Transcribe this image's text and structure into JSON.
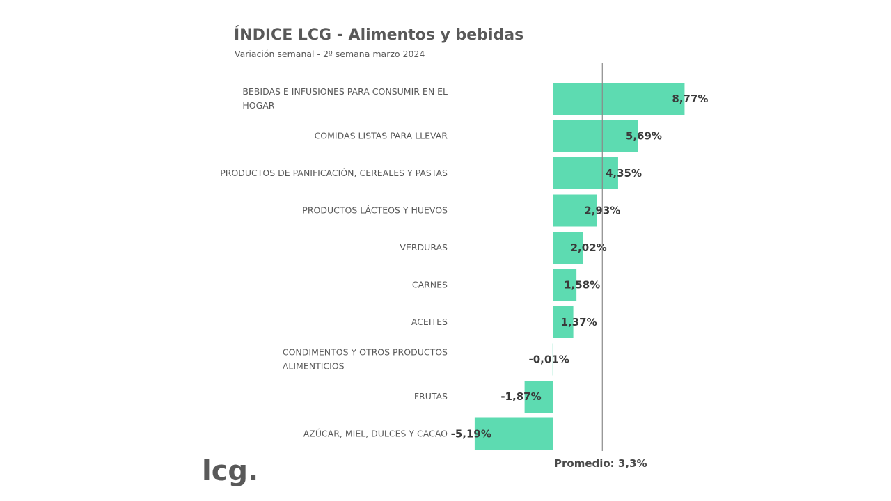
{
  "colors": {
    "bar": "#5ddbb1",
    "text": "#595959",
    "value_text": "#3a3a3a",
    "average_line": "#8a8a8a"
  },
  "brand": {
    "logo": "lcg."
  },
  "chart_data": {
    "type": "bar",
    "orientation": "horizontal",
    "title": "ÍNDICE LCG - Alimentos y bebidas",
    "subtitle": "Variación semanal - 2º semana marzo 2024",
    "categories": [
      [
        "BEBIDAS E INFUSIONES PARA CONSUMIR EN EL",
        "HOGAR"
      ],
      [
        "COMIDAS LISTAS PARA LLEVAR"
      ],
      [
        "PRODUCTOS DE PANIFICACIÓN, CEREALES Y PASTAS"
      ],
      [
        "PRODUCTOS LÁCTEOS Y HUEVOS"
      ],
      [
        "VERDURAS"
      ],
      [
        "CARNES"
      ],
      [
        "ACEITES"
      ],
      [
        "CONDIMENTOS Y OTROS PRODUCTOS",
        "ALIMENTICIOS"
      ],
      [
        "FRUTAS"
      ],
      [
        "AZÚCAR, MIEL, DULCES Y CACAO"
      ]
    ],
    "values": [
      8.77,
      5.69,
      4.35,
      2.93,
      2.02,
      1.58,
      1.37,
      -0.01,
      -1.87,
      -5.19
    ],
    "value_labels": [
      "8,77%",
      "5,69%",
      "4,35%",
      "2,93%",
      "2,02%",
      "1,58%",
      "1,37%",
      "-0,01%",
      "-1,87%",
      "-5,19%"
    ],
    "average": 3.3,
    "average_label": "Promedio: 3,3%",
    "xlabel": "",
    "ylabel": "",
    "grid": false,
    "legend": "none"
  }
}
